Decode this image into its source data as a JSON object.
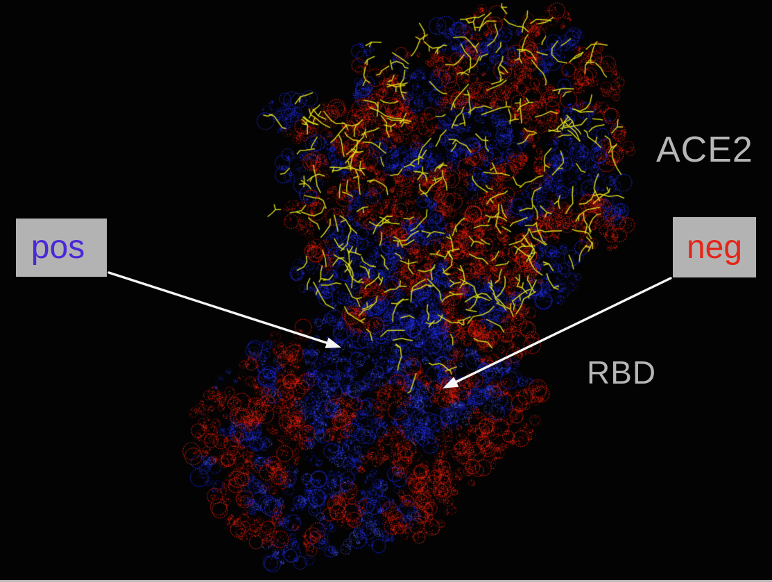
{
  "figure": {
    "labels": {
      "ace2": "ACE2",
      "rbd": "RBD"
    },
    "callouts": {
      "pos": {
        "text": "pos",
        "text_color": "#4b28d8",
        "box_color": "#b3b3b3"
      },
      "neg": {
        "text": "neg",
        "text_color": "#e42519",
        "box_color": "#b3b3b3"
      }
    },
    "colors": {
      "background": "#030303",
      "mesh_red": "#f5220e",
      "mesh_red_dark": "#a10c05",
      "mesh_blue": "#2430f6",
      "mesh_blue_dark": "#0e129e",
      "mesh_blue_light": "#5064ff",
      "sticks_yellow": "#e4e51c",
      "arrow": "#f5f5f5",
      "label_text": "#b6b6b6",
      "bottom_strip": "#b9b9b9"
    }
  }
}
